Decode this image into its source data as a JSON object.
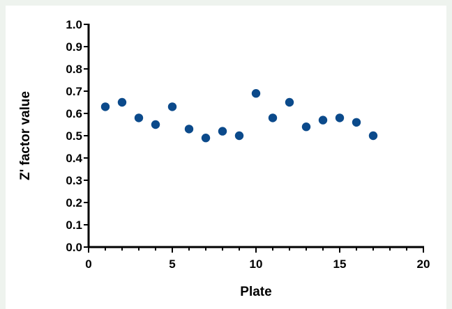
{
  "chart_data": {
    "type": "scatter",
    "xlabel": "Plate",
    "ylabel": "Z' factor value",
    "xlim": [
      0,
      20
    ],
    "ylim": [
      0.0,
      1.0
    ],
    "xticks": [
      "0",
      "5",
      "10",
      "15",
      "20"
    ],
    "yticks": [
      "0.0",
      "0.1",
      "0.2",
      "0.3",
      "0.4",
      "0.5",
      "0.6",
      "0.7",
      "0.8",
      "0.9",
      "1.0"
    ],
    "marker_color": "#0b4a8b",
    "series": [
      {
        "x": [
          1,
          2,
          3,
          4,
          5,
          6,
          7,
          8,
          9,
          10,
          11,
          12,
          13,
          14,
          15,
          16,
          17
        ],
        "y": [
          0.63,
          0.65,
          0.58,
          0.55,
          0.63,
          0.53,
          0.49,
          0.52,
          0.5,
          0.69,
          0.58,
          0.65,
          0.54,
          0.57,
          0.58,
          0.56,
          0.5
        ]
      }
    ]
  }
}
